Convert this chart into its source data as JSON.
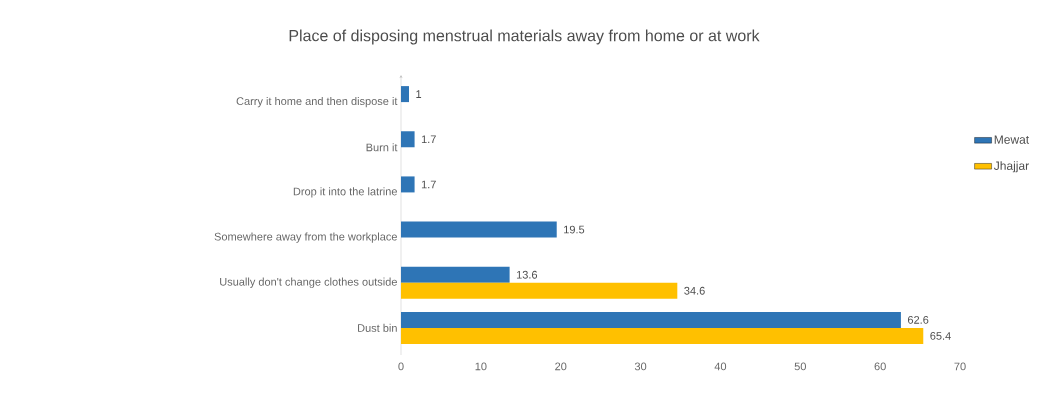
{
  "chart_data": {
    "type": "bar",
    "orientation": "horizontal",
    "title": "Place of disposing menstrual materials away from home or at work",
    "categories": [
      "Carry it home and then dispose it",
      "Burn it",
      "Drop it into the latrine",
      "Somewhere away from the workplace",
      "Usually don't change clothes outside",
      "Dust bin"
    ],
    "series": [
      {
        "name": "Mewat",
        "color": "#2e75b6",
        "values": [
          1,
          1.7,
          1.7,
          19.5,
          13.6,
          62.6
        ]
      },
      {
        "name": "Jhajjar",
        "color": "#ffc000",
        "values": [
          null,
          null,
          null,
          null,
          34.6,
          65.4
        ]
      }
    ],
    "xlim": [
      0,
      70
    ],
    "xticks": [
      0,
      10,
      20,
      30,
      40,
      50,
      60,
      70
    ],
    "legend": "right",
    "data_labels": true
  }
}
